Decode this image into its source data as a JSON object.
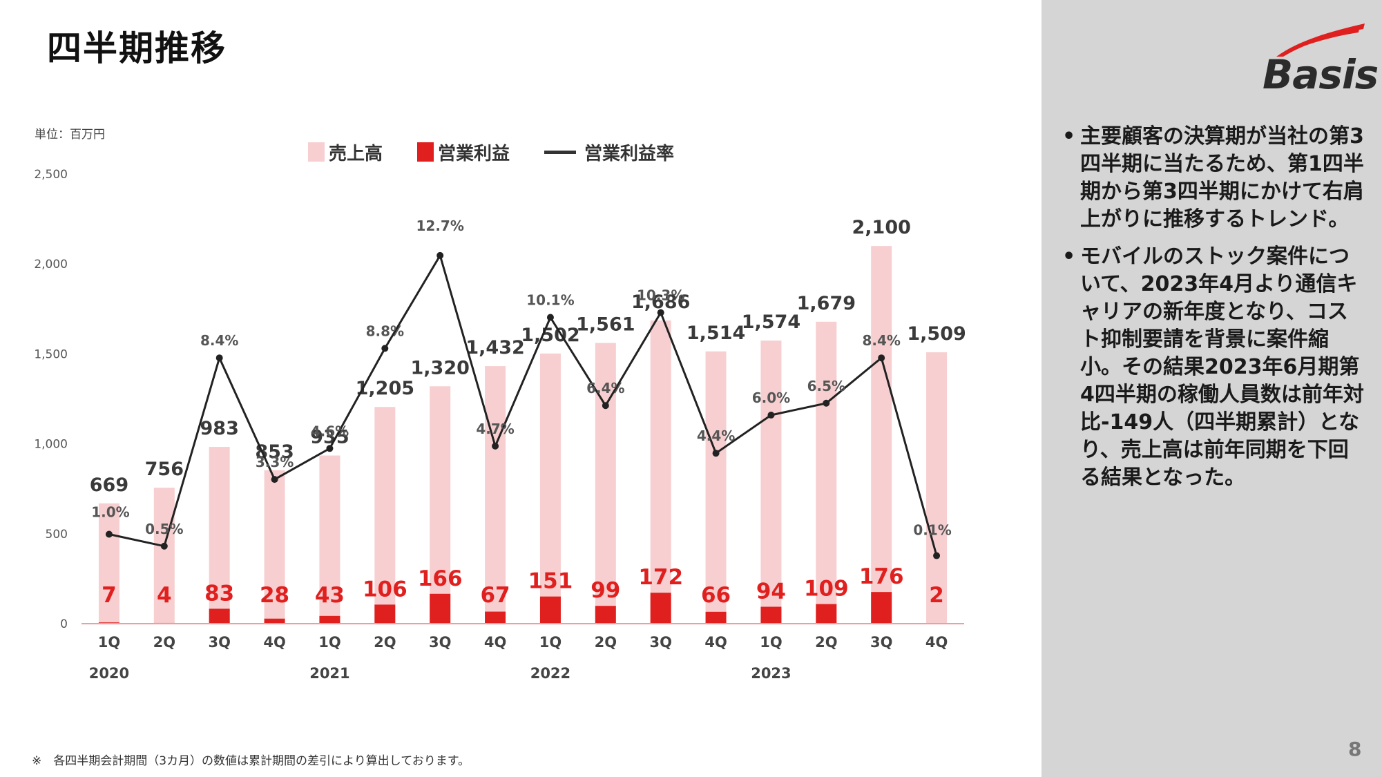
{
  "slide": {
    "title": "四半期推移",
    "unit_label": "単位：百万円",
    "footnote": "※　各四半期会計期間（3カ月）の数値は累計期間の差引により算出しております。",
    "page_number": "8"
  },
  "logo": {
    "text": "Basis",
    "accent_color": "#e0201f"
  },
  "bullets": [
    "主要顧客の決算期が当社の第3四半期に当たるため、第1四半期から第3四半期にかけて右肩上がりに推移するトレンド。",
    "モバイルのストック案件について、2023年4月より通信キャリアの新年度となり、コスト抑制要請を背景に案件縮小。その結果2023年6月期第4四半期の稼働人員数は前年対比-149人（四半期累計）となり、売上高は前年同期を下回る結果となった。"
  ],
  "bullet_marker": "•",
  "chart_data": {
    "type": "bar",
    "categories": [
      "1Q",
      "2Q",
      "3Q",
      "4Q",
      "1Q",
      "2Q",
      "3Q",
      "4Q",
      "1Q",
      "2Q",
      "3Q",
      "4Q",
      "1Q",
      "2Q",
      "3Q",
      "4Q"
    ],
    "year_labels": [
      {
        "label": "2020",
        "start_index": 0
      },
      {
        "label": "2021",
        "start_index": 4
      },
      {
        "label": "2022",
        "start_index": 8
      },
      {
        "label": "2023",
        "start_index": 12
      }
    ],
    "series": [
      {
        "name": "売上高",
        "kind": "bar",
        "color": "#f7cfd0",
        "values": [
          669,
          756,
          983,
          853,
          935,
          1205,
          1320,
          1432,
          1502,
          1561,
          1686,
          1514,
          1574,
          1679,
          2100,
          1509
        ],
        "labels": [
          "669",
          "756",
          "983",
          "853",
          "935",
          "1,205",
          "1,320",
          "1,432",
          "1,502",
          "1,561",
          "1,686",
          "1,514",
          "1,574",
          "1,679",
          "2,100",
          "1,509"
        ]
      },
      {
        "name": "営業利益",
        "kind": "bar",
        "color": "#e0201f",
        "values": [
          7,
          4,
          83,
          28,
          43,
          106,
          166,
          67,
          151,
          99,
          172,
          66,
          94,
          109,
          176,
          2
        ],
        "labels": [
          "7",
          "4",
          "83",
          "28",
          "43",
          "106",
          "166",
          "67",
          "151",
          "99",
          "172",
          "66",
          "94",
          "109",
          "176",
          "2"
        ]
      },
      {
        "name": "営業利益率",
        "kind": "line",
        "color": "#222222",
        "values": [
          1.0,
          0.5,
          8.4,
          3.3,
          4.6,
          8.8,
          12.7,
          4.7,
          10.1,
          6.4,
          10.3,
          4.4,
          6.0,
          6.5,
          8.4,
          0.1
        ],
        "labels": [
          "1.0%",
          "0.5%",
          "8.4%",
          "3.3%",
          "4.6%",
          "8.8%",
          "12.7%",
          "4.7%",
          "10.1%",
          "6.4%",
          "10.3%",
          "4.4%",
          "6.0%",
          "6.5%",
          "8.4%",
          "0.1%"
        ]
      }
    ],
    "y_ticks": [
      "0",
      "500",
      "1,000",
      "1,500",
      "2,000",
      "2,500"
    ],
    "ylim": [
      0,
      2500
    ],
    "grid": false,
    "legend_position": "top"
  }
}
